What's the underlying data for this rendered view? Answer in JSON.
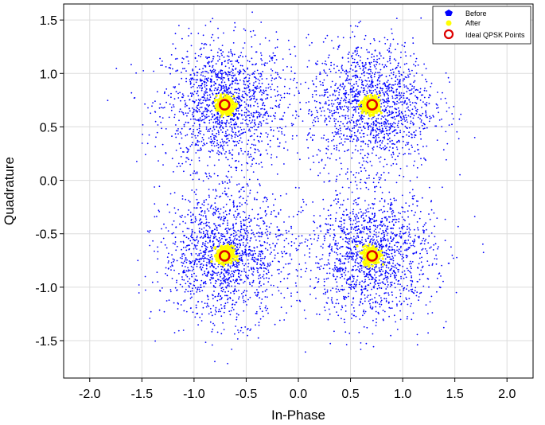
{
  "chart_data": {
    "type": "scatter",
    "title": "",
    "xlabel": "In-Phase",
    "ylabel": "Quadrature",
    "xlim": [
      -2.25,
      2.25
    ],
    "ylim": [
      -1.85,
      1.65
    ],
    "xticks": [
      -2.0,
      -1.5,
      -1.0,
      -0.5,
      0.0,
      0.5,
      1.0,
      1.5,
      2.0
    ],
    "xtick_labels": [
      "-2.0",
      "-1.5",
      "-1.0",
      "-0.5",
      "0.0",
      "0.5",
      "1.0",
      "1.5",
      "2.0"
    ],
    "yticks": [
      -1.5,
      -1.0,
      -0.5,
      0.0,
      0.5,
      1.0,
      1.5
    ],
    "ytick_labels": [
      "-1.5",
      "-1.0",
      "-0.5",
      "0.0",
      "0.5",
      "1.0",
      "1.5"
    ],
    "grid": true,
    "legend_position": "top-right",
    "series": [
      {
        "name": "Before",
        "color": "#0000ff",
        "marker": "dot",
        "clusters": [
          [
            -0.7,
            0.7
          ],
          [
            0.7,
            0.7
          ],
          [
            -0.7,
            -0.7
          ],
          [
            0.7,
            -0.7
          ]
        ],
        "spread_std": 0.3,
        "points_per_cluster": 1500
      },
      {
        "name": "After",
        "color": "#ffff00",
        "marker": "dot",
        "clusters": [
          [
            -0.7,
            0.7
          ],
          [
            0.7,
            0.7
          ],
          [
            -0.7,
            -0.7
          ],
          [
            0.7,
            -0.7
          ]
        ],
        "spread_std": 0.04,
        "points_per_cluster": 300
      },
      {
        "name": "Ideal QPSK Points",
        "color": "#dd0000",
        "marker": "ring",
        "points": [
          [
            -0.707,
            0.707
          ],
          [
            0.707,
            0.707
          ],
          [
            -0.707,
            -0.707
          ],
          [
            0.707,
            -0.707
          ]
        ]
      }
    ]
  }
}
